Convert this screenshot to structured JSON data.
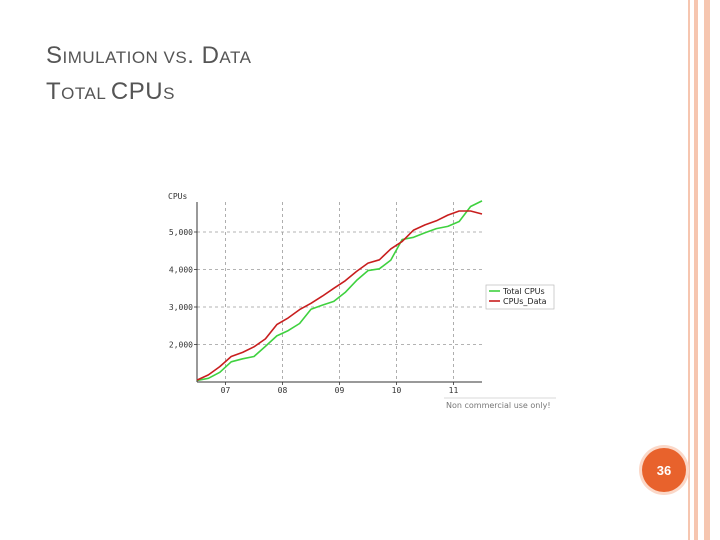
{
  "slide": {
    "title_line1": {
      "a": "S",
      "b": "IMULATION ",
      "c": "VS",
      "d": ". D",
      "e": "ATA"
    },
    "title_line2": {
      "a": "T",
      "b": "OTAL ",
      "c": "CPU",
      "d": "S"
    },
    "page_number": "36"
  },
  "colors": {
    "accent": "#e8622c",
    "rail": "#f6c6b0",
    "sim": "#3fd13f",
    "data": "#c81e1e"
  },
  "chart_data": {
    "type": "line",
    "ylabel": "CPUs",
    "y_ticks": [
      "2,000",
      "3,000",
      "4,000",
      "5,000"
    ],
    "x_ticks": [
      "07",
      "08",
      "09",
      "10",
      "11"
    ],
    "ylim": [
      1000,
      5800
    ],
    "grid": true,
    "legend_position": "right",
    "note": "Non commercial use only!",
    "series": [
      {
        "name": "Total CPUs",
        "color": "#3fd13f",
        "x": [
          0,
          0.2,
          0.4,
          0.6,
          0.8,
          1.0,
          1.2,
          1.4,
          1.6,
          1.8,
          2.0,
          2.2,
          2.4,
          2.6,
          2.8,
          3.0,
          3.2,
          3.4,
          3.6,
          3.8,
          4.0,
          4.2,
          4.4,
          4.6,
          4.8,
          5.0
        ],
        "values": [
          1040,
          1100,
          1260,
          1540,
          1620,
          1680,
          1950,
          2230,
          2370,
          2560,
          2940,
          3050,
          3150,
          3390,
          3710,
          3970,
          4020,
          4250,
          4800,
          4860,
          4980,
          5090,
          5150,
          5280,
          5680,
          5830
        ]
      },
      {
        "name": "CPUs_Data",
        "color": "#c81e1e",
        "x": [
          0,
          0.2,
          0.4,
          0.6,
          0.8,
          1.0,
          1.2,
          1.4,
          1.6,
          1.8,
          2.0,
          2.2,
          2.4,
          2.6,
          2.8,
          3.0,
          3.2,
          3.4,
          3.6,
          3.8,
          4.0,
          4.2,
          4.4,
          4.6,
          4.8,
          5.0
        ],
        "values": [
          1050,
          1190,
          1410,
          1680,
          1790,
          1940,
          2150,
          2530,
          2710,
          2930,
          3100,
          3290,
          3500,
          3700,
          3950,
          4170,
          4260,
          4550,
          4750,
          5050,
          5190,
          5300,
          5450,
          5560,
          5560,
          5480
        ]
      }
    ]
  }
}
